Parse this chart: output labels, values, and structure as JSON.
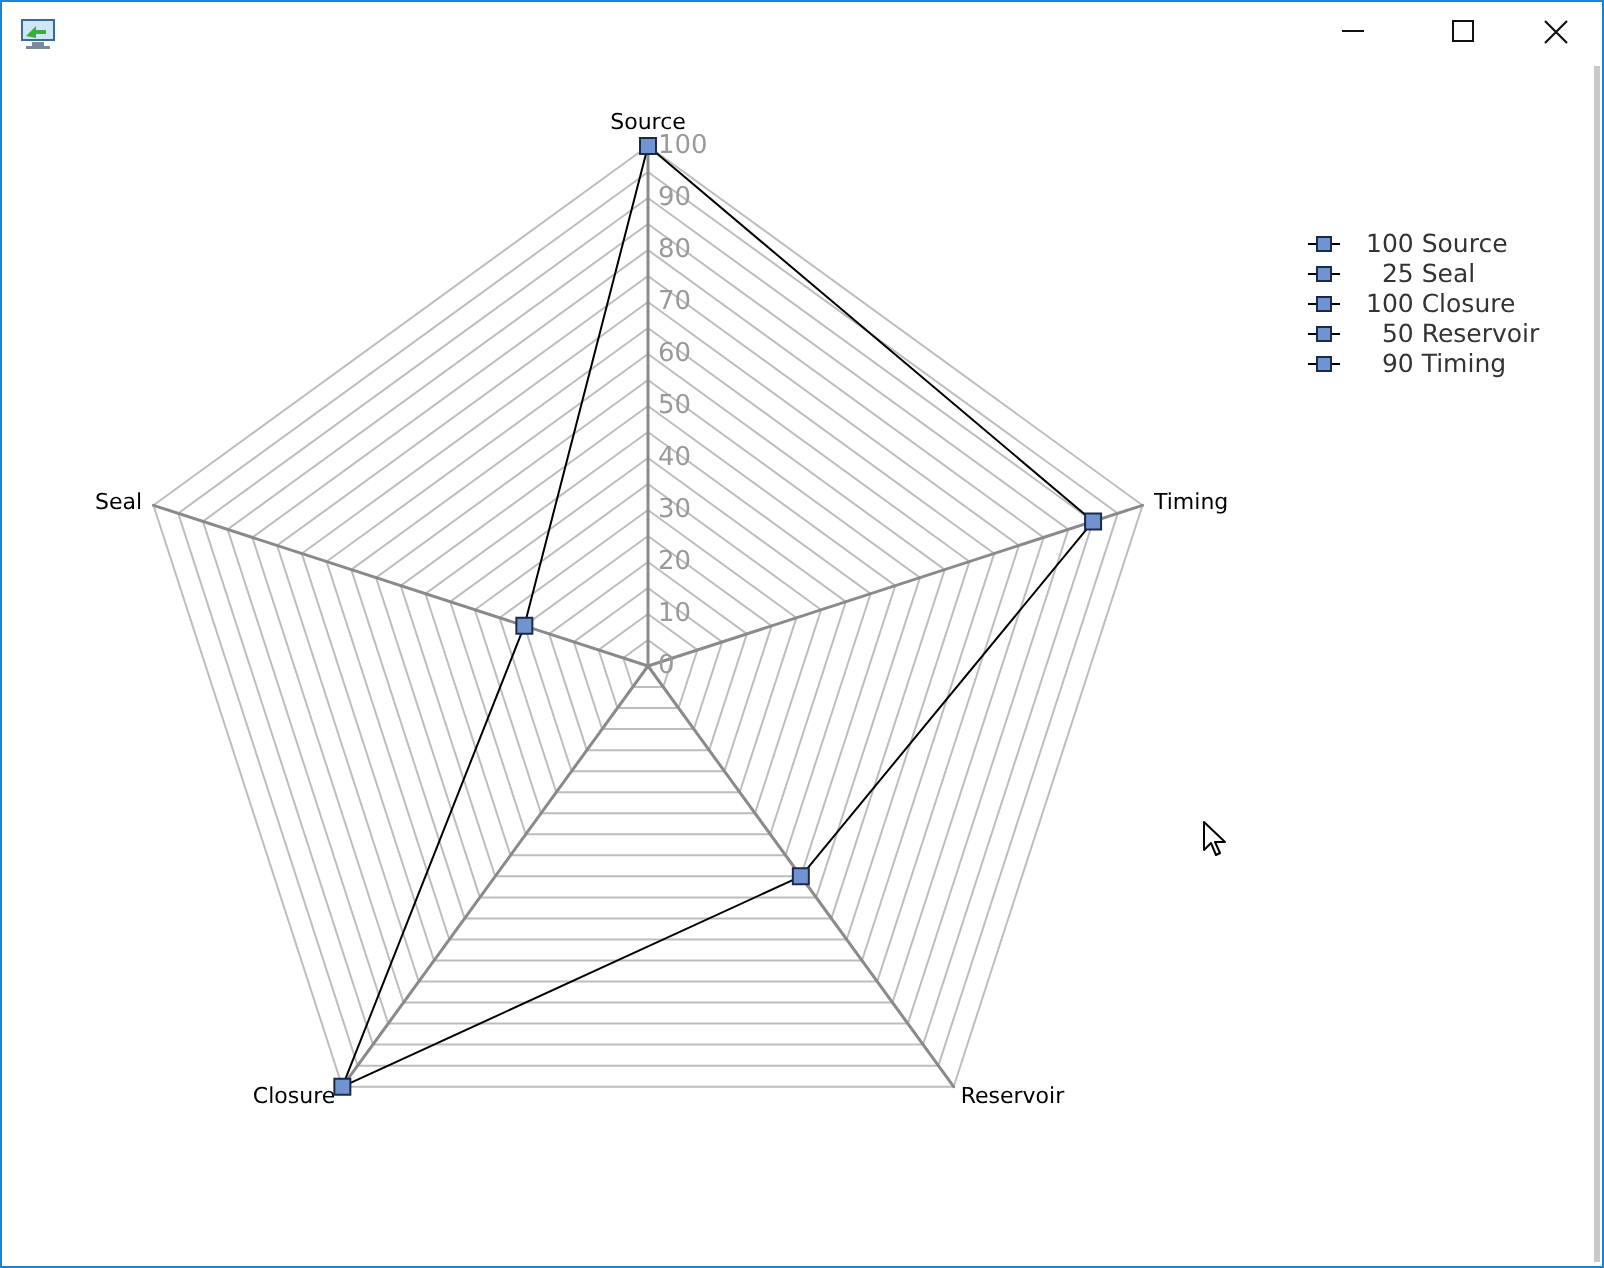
{
  "chart_data": {
    "type": "radar",
    "categories": [
      "Source",
      "Timing",
      "Reservoir",
      "Closure",
      "Seal"
    ],
    "series": [
      {
        "color": "#000000",
        "colors": [
          "#6f94cf",
          "#6f94cf",
          "#6f94cf",
          "#6f94cf",
          "#6f94cf"
        ],
        "values": [
          100,
          90,
          50,
          100,
          25
        ]
      }
    ],
    "ylim": [
      0,
      100
    ],
    "yticks": [
      0,
      10,
      20,
      30,
      40,
      50,
      60,
      70,
      80,
      90,
      100
    ],
    "annotations": [
      "100 Source",
      "25 Seal",
      "100 Closure",
      "50 Reservoir",
      "90 Timing"
    ],
    "grid": true,
    "marker": "square",
    "line_style": "solid"
  }
}
